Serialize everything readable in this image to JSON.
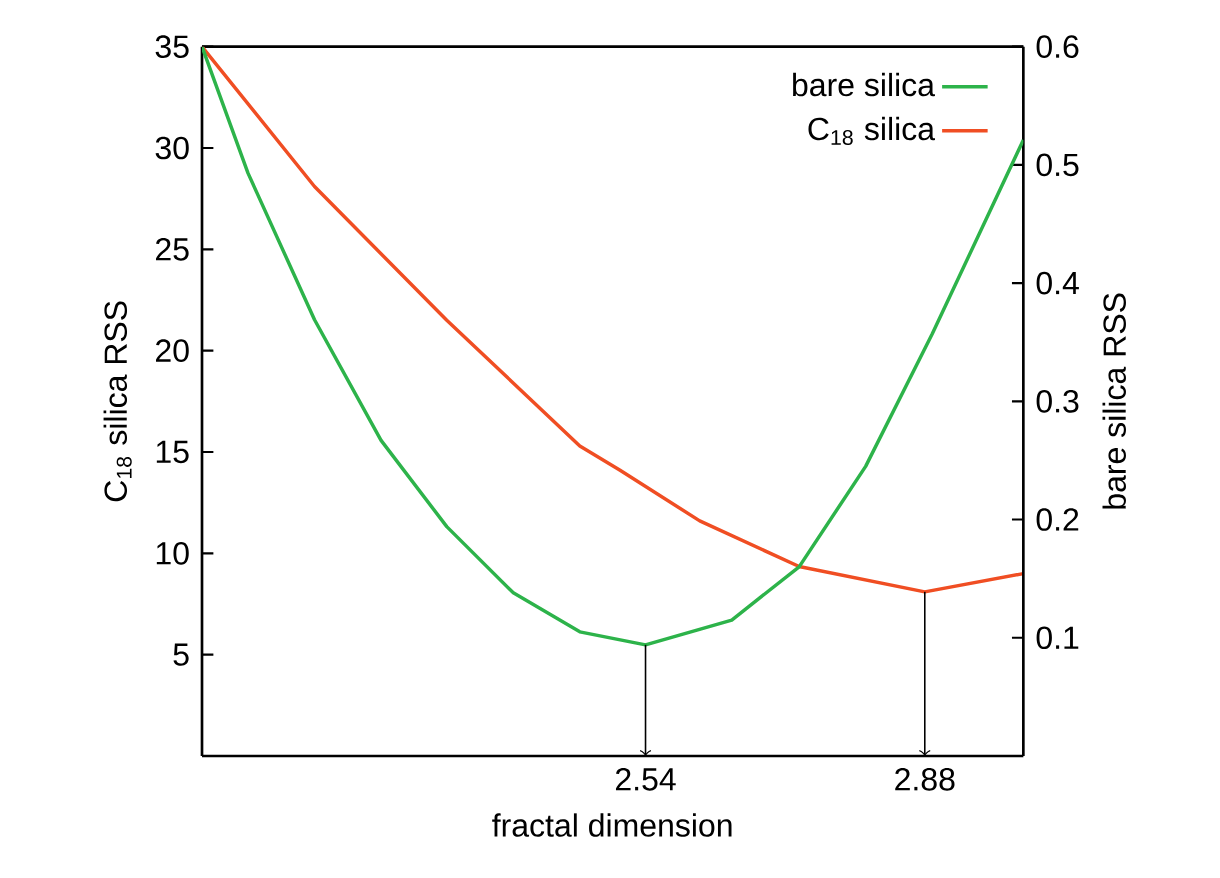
{
  "chart_data": {
    "type": "line",
    "xlabel": "fractal dimension",
    "ylabel": "C$_{18}$ silica RSS",
    "y2label": "bare silica RSS",
    "xlim": [
      2.0,
      3.0
    ],
    "xticks": [
      2.54,
      2.88
    ],
    "ylim": [
      0,
      35
    ],
    "yticks": [
      5,
      10,
      15,
      20,
      25,
      30,
      35
    ],
    "y2lim": [
      0,
      0.6
    ],
    "y2ticks": [
      0.1,
      0.2,
      0.3,
      0.4,
      0.5,
      0.6
    ],
    "legend": "top right",
    "grid": false,
    "marker": "none",
    "line_style": "solid",
    "series": [
      {
        "name": "bare silica",
        "color": "#2db34a",
        "axis": "y2",
        "x": [
          2.0,
          2.056,
          2.137,
          2.218,
          2.298,
          2.379,
          2.46,
          2.54,
          2.645,
          2.727,
          2.808,
          2.889,
          3.0
        ],
        "values": [
          0.6,
          0.493,
          0.369,
          0.267,
          0.194,
          0.138,
          0.105,
          0.094,
          0.115,
          0.16,
          0.245,
          0.357,
          0.521
        ]
      },
      {
        "name": "C$_{18}$ silica",
        "color": "#f04e23",
        "axis": "y",
        "x": [
          2.0,
          2.137,
          2.298,
          2.46,
          2.509,
          2.606,
          2.727,
          2.88,
          3.0
        ],
        "values": [
          35,
          28.1,
          21.5,
          15.3,
          14.1,
          11.6,
          9.35,
          8.1,
          9.0
        ]
      }
    ]
  }
}
